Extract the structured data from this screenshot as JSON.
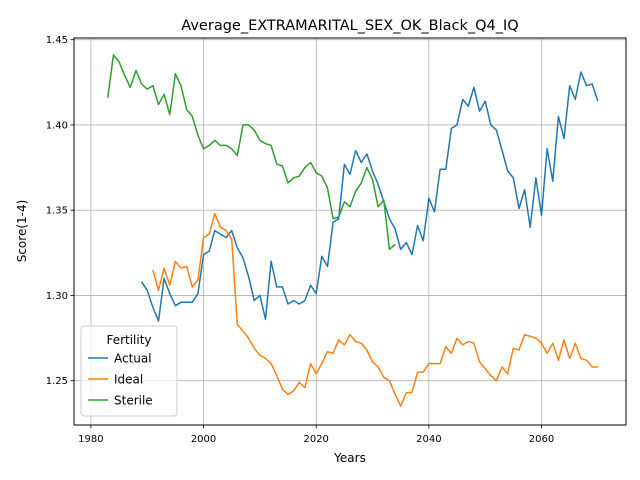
{
  "chart_data": {
    "type": "line",
    "title": "Average_EXTRAMARITAL_SEX_OK_Black_Q4_IQ",
    "xlabel": "Years",
    "ylabel": "Score(1-4)",
    "xlim": [
      1977,
      2075
    ],
    "ylim": [
      1.224,
      1.451
    ],
    "xticks": [
      1980,
      2000,
      2020,
      2040,
      2060
    ],
    "yticks": [
      1.25,
      1.3,
      1.35,
      1.4,
      1.45
    ],
    "ytick_labels": [
      "1.25",
      "1.30",
      "1.35",
      "1.40",
      "1.45"
    ],
    "grid": true,
    "legend": {
      "title": "Fertility",
      "placement": "lower left"
    },
    "series": [
      {
        "name": "Actual",
        "color": "#1f77b4",
        "x": [
          1989,
          1990,
          1991,
          1992,
          1993,
          1994,
          1995,
          1996,
          1997,
          1998,
          1999,
          2000,
          2001,
          2002,
          2003,
          2004,
          2005,
          2006,
          2007,
          2008,
          2009,
          2010,
          2011,
          2012,
          2013,
          2014,
          2015,
          2016,
          2017,
          2018,
          2019,
          2020,
          2021,
          2022,
          2023,
          2024,
          2025,
          2026,
          2027,
          2028,
          2029,
          2030,
          2031,
          2032,
          2033,
          2034,
          2035,
          2036,
          2037,
          2038,
          2039,
          2040,
          2041,
          2042,
          2043,
          2044,
          2045,
          2046,
          2047,
          2048,
          2049,
          2050,
          2051,
          2052,
          2053,
          2054,
          2055,
          2056,
          2057,
          2058,
          2059,
          2060,
          2061,
          2062,
          2063,
          2064,
          2065,
          2066,
          2067,
          2068,
          2069,
          2070
        ],
        "values": [
          1.308,
          1.303,
          1.293,
          1.285,
          1.31,
          1.301,
          1.294,
          1.296,
          1.296,
          1.296,
          1.301,
          1.324,
          1.326,
          1.338,
          1.336,
          1.334,
          1.338,
          1.328,
          1.322,
          1.311,
          1.297,
          1.3,
          1.286,
          1.32,
          1.305,
          1.305,
          1.295,
          1.297,
          1.295,
          1.297,
          1.306,
          1.301,
          1.323,
          1.317,
          1.343,
          1.345,
          1.377,
          1.371,
          1.385,
          1.378,
          1.383,
          1.373,
          1.365,
          1.355,
          1.345,
          1.339,
          1.327,
          1.331,
          1.324,
          1.341,
          1.332,
          1.357,
          1.349,
          1.374,
          1.374,
          1.398,
          1.4,
          1.415,
          1.411,
          1.422,
          1.408,
          1.414,
          1.4,
          1.397,
          1.385,
          1.373,
          1.369,
          1.351,
          1.362,
          1.34,
          1.369,
          1.347,
          1.386,
          1.367,
          1.405,
          1.392,
          1.423,
          1.415,
          1.431,
          1.423,
          1.424,
          1.414
        ]
      },
      {
        "name": "Ideal",
        "color": "#ff7f0e",
        "x": [
          1991,
          1992,
          1993,
          1994,
          1995,
          1996,
          1997,
          1998,
          1999,
          2000,
          2001,
          2002,
          2003,
          2004,
          2005,
          2006,
          2007,
          2008,
          2009,
          2010,
          2011,
          2012,
          2013,
          2014,
          2015,
          2016,
          2017,
          2018,
          2019,
          2020,
          2021,
          2022,
          2023,
          2024,
          2025,
          2026,
          2027,
          2028,
          2029,
          2030,
          2031,
          2032,
          2033,
          2034,
          2035,
          2036,
          2037,
          2038,
          2039,
          2040,
          2041,
          2042,
          2043,
          2044,
          2045,
          2046,
          2047,
          2048,
          2049,
          2050,
          2051,
          2052,
          2053,
          2054,
          2055,
          2056,
          2057,
          2058,
          2059,
          2060,
          2061,
          2062,
          2063,
          2064,
          2065,
          2066,
          2067,
          2068,
          2069,
          2070
        ],
        "values": [
          1.315,
          1.303,
          1.316,
          1.306,
          1.32,
          1.316,
          1.317,
          1.305,
          1.309,
          1.334,
          1.336,
          1.348,
          1.34,
          1.338,
          1.333,
          1.283,
          1.279,
          1.275,
          1.269,
          1.265,
          1.263,
          1.26,
          1.253,
          1.245,
          1.242,
          1.244,
          1.249,
          1.246,
          1.26,
          1.254,
          1.26,
          1.267,
          1.266,
          1.274,
          1.271,
          1.277,
          1.273,
          1.272,
          1.268,
          1.261,
          1.258,
          1.252,
          1.25,
          1.242,
          1.235,
          1.243,
          1.243,
          1.255,
          1.255,
          1.26,
          1.26,
          1.26,
          1.27,
          1.266,
          1.275,
          1.271,
          1.273,
          1.272,
          1.261,
          1.257,
          1.253,
          1.25,
          1.258,
          1.254,
          1.269,
          1.268,
          1.277,
          1.276,
          1.275,
          1.272,
          1.266,
          1.272,
          1.262,
          1.274,
          1.263,
          1.272,
          1.263,
          1.262,
          1.258,
          1.258
        ]
      },
      {
        "name": "Sterile",
        "color": "#2ca02c",
        "x": [
          1983,
          1984,
          1985,
          1986,
          1987,
          1988,
          1989,
          1990,
          1991,
          1992,
          1993,
          1994,
          1995,
          1996,
          1997,
          1998,
          1999,
          2000,
          2001,
          2002,
          2003,
          2004,
          2005,
          2006,
          2007,
          2008,
          2009,
          2010,
          2011,
          2012,
          2013,
          2014,
          2015,
          2016,
          2017,
          2018,
          2019,
          2020,
          2021,
          2022,
          2023,
          2024,
          2025,
          2026,
          2027,
          2028,
          2029,
          2030,
          2031,
          2032,
          2033,
          2034
        ],
        "values": [
          1.416,
          1.441,
          1.437,
          1.429,
          1.422,
          1.432,
          1.424,
          1.421,
          1.423,
          1.412,
          1.418,
          1.406,
          1.43,
          1.423,
          1.409,
          1.405,
          1.394,
          1.386,
          1.388,
          1.391,
          1.388,
          1.388,
          1.386,
          1.382,
          1.4,
          1.4,
          1.397,
          1.391,
          1.389,
          1.388,
          1.377,
          1.376,
          1.366,
          1.369,
          1.37,
          1.375,
          1.378,
          1.372,
          1.37,
          1.363,
          1.345,
          1.346,
          1.355,
          1.352,
          1.361,
          1.366,
          1.375,
          1.368,
          1.352,
          1.356,
          1.327,
          1.33
        ]
      }
    ]
  }
}
